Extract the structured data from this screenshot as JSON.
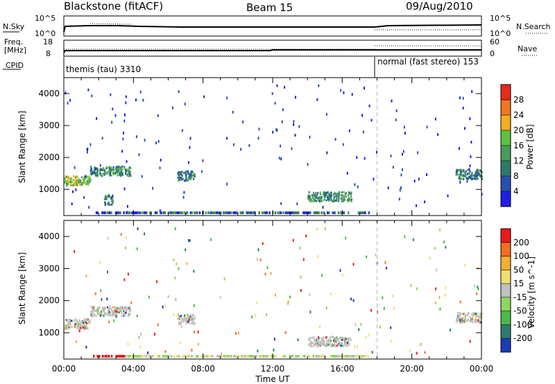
{
  "header": {
    "station": "Blackstone (fitACF)",
    "beam": "Beam 15",
    "date": "09/Aug/2010"
  },
  "strip_labels": {
    "nsky": "N.Sky",
    "nsearch": "N.Search",
    "freq_line1": "Freq.",
    "freq_line2": "[MHz]",
    "nave": "Nave",
    "cpid": "CPID",
    "nsky_ticks": [
      "10^5",
      "10^0"
    ],
    "nsearch_ticks": [
      "10^5",
      "10^0"
    ],
    "freq_ticks": [
      "18",
      "8"
    ],
    "nave_ticks": [
      "60",
      "0"
    ]
  },
  "cpid_segments": [
    {
      "label": "themis (tau) 3310",
      "start_hour": 0,
      "end_hour": 18
    },
    {
      "label": "normal (fast stereo) 153",
      "start_hour": 18,
      "end_hour": 24
    }
  ],
  "chart_data": [
    {
      "type": "heatmap",
      "panel": "power",
      "title": "",
      "xlabel": "",
      "ylabel": "Slant Range [km]",
      "xlim": [
        0,
        24
      ],
      "ylim": [
        180,
        4500
      ],
      "yticks": [
        1000,
        2000,
        3000,
        4000
      ],
      "colorbar": {
        "label": "Power [dB]",
        "ticks": [
          "4",
          "8",
          "12",
          "16",
          "20",
          "24",
          "28"
        ],
        "colors": [
          "#1e1ee6",
          "#2a4fb0",
          "#2f7a6e",
          "#4a9a5a",
          "#5dc040",
          "#f0b020",
          "#f07820",
          "#e82a1a"
        ]
      },
      "features": [
        {
          "hour_start": 0.0,
          "hour_end": 1.5,
          "range_km": 1300,
          "level": 0.8
        },
        {
          "hour_start": 1.5,
          "hour_end": 3.8,
          "range_km": 1600,
          "level": 0.4
        },
        {
          "hour_start": 2.3,
          "hour_end": 2.8,
          "range_km": 700,
          "level": 0.3
        },
        {
          "hour_start": 6.5,
          "hour_end": 7.5,
          "range_km": 1450,
          "level": 0.3
        },
        {
          "hour_start": 14.0,
          "hour_end": 16.5,
          "range_km": 800,
          "level": 0.4
        },
        {
          "hour_start": 22.5,
          "hour_end": 24.0,
          "range_km": 1500,
          "level": 0.3
        }
      ]
    },
    {
      "type": "heatmap",
      "panel": "velocity",
      "title": "",
      "xlabel": "Time UT",
      "ylabel": "Slant Range [km]",
      "xlim": [
        0,
        24
      ],
      "ylim": [
        180,
        4500
      ],
      "xticks": [
        "00:00",
        "04:00",
        "08:00",
        "12:00",
        "16:00",
        "20:00",
        "00:00"
      ],
      "yticks": [
        1000,
        2000,
        3000,
        4000
      ],
      "colorbar": {
        "label": "Velocity [m s^-1]",
        "ticks": [
          "200",
          "100",
          "50",
          "15",
          "-15",
          "-50",
          "-100",
          "-200"
        ],
        "colors": [
          "#1e3cb4",
          "#2f7a6e",
          "#4cb848",
          "#8ad860",
          "#c0c0c0",
          "#f0e070",
          "#f0b030",
          "#f07020",
          "#e81a1a"
        ]
      },
      "features": [
        {
          "hour_start": 0.0,
          "hour_end": 1.5,
          "range_km": 1300,
          "level": 0.5
        },
        {
          "hour_start": 1.5,
          "hour_end": 3.8,
          "range_km": 1700,
          "level": 0.5
        },
        {
          "hour_start": 6.5,
          "hour_end": 7.5,
          "range_km": 1450,
          "level": 0.3
        },
        {
          "hour_start": 14.0,
          "hour_end": 16.5,
          "range_km": 750,
          "level": 0.5
        },
        {
          "hour_start": 22.5,
          "hour_end": 24.0,
          "range_km": 1500,
          "level": 0.5
        }
      ]
    }
  ]
}
